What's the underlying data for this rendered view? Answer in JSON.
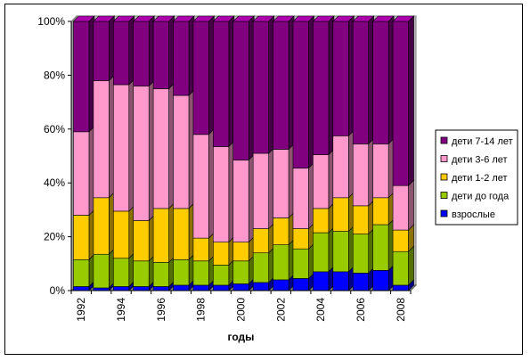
{
  "chart_data": {
    "type": "bar",
    "stacked": "percent",
    "style": "3d",
    "categories": [
      "1992",
      "1993",
      "1994",
      "1995",
      "1996",
      "1997",
      "1998",
      "1999",
      "2000",
      "2001",
      "2002",
      "2003",
      "2004",
      "2005",
      "2006",
      "2007",
      "2008"
    ],
    "tick_labels": [
      "1992",
      "1994",
      "1996",
      "1998",
      "2000",
      "2002",
      "2004",
      "2006",
      "2008"
    ],
    "xlabel": "годы",
    "ylabel": "",
    "ylim": [
      0,
      100
    ],
    "y_ticks": [
      "0%",
      "20%",
      "40%",
      "60%",
      "80%",
      "100%"
    ],
    "grid": false,
    "legend_position": "right",
    "series": [
      {
        "name": "взрослые",
        "color": "#0000ff",
        "values": [
          1.5,
          1,
          1.5,
          1.5,
          1.5,
          2,
          2,
          2,
          2.5,
          3,
          4,
          4.5,
          7,
          7,
          6.5,
          7.5,
          2
        ]
      },
      {
        "name": "дети до года",
        "color": "#99cc00",
        "values": [
          10,
          12.5,
          10.5,
          9.5,
          9,
          9.5,
          9,
          7.5,
          8.5,
          11,
          13,
          11,
          14.5,
          15,
          14.5,
          17,
          12.5
        ]
      },
      {
        "name": "дети 1-2 лет",
        "color": "#ffcc00",
        "values": [
          16.5,
          21,
          17.5,
          15,
          20,
          19,
          8.5,
          8.5,
          7,
          9,
          10,
          7.5,
          9,
          12.5,
          10.5,
          10,
          8
        ]
      },
      {
        "name": "дети 3-6 лет",
        "color": "#ff99cc",
        "values": [
          31,
          43.5,
          47,
          50,
          44.5,
          42,
          38.5,
          35.5,
          30.5,
          28,
          25.5,
          22.5,
          20,
          23,
          23,
          20,
          16.5
        ]
      },
      {
        "name": "дети 7-14 лет",
        "color": "#800080",
        "values": [
          41,
          22,
          23.5,
          24,
          25,
          27.5,
          42,
          46.5,
          51.5,
          49,
          47.5,
          54.5,
          49.5,
          42.5,
          45.5,
          45.5,
          61
        ]
      }
    ]
  }
}
